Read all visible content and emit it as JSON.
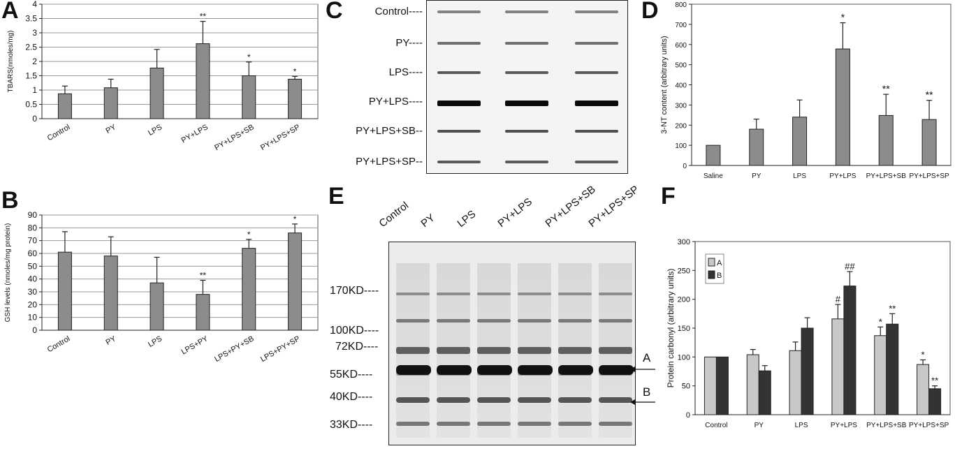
{
  "panels": {
    "a_letter": "A",
    "b_letter": "B",
    "c_letter": "C",
    "d_letter": "D",
    "e_letter": "E",
    "f_letter": "F"
  },
  "chart_data": [
    {
      "id": "A",
      "type": "bar",
      "categories": [
        "Control",
        "PY",
        "LPS",
        "PY+LPS",
        "PY+LPS+SB",
        "PY+LPS+SP"
      ],
      "values": [
        0.87,
        1.08,
        1.77,
        2.62,
        1.5,
        1.38
      ],
      "errors": [
        0.27,
        0.3,
        0.65,
        0.78,
        0.48,
        0.1
      ],
      "annotations": [
        "",
        "",
        "",
        "**",
        "*",
        "*"
      ],
      "ylabel": "TBARS(nmoles/mg)",
      "ylim": [
        0,
        4
      ],
      "yticks": [
        "0",
        "0.5",
        "1",
        "1.5",
        "2",
        "2.5",
        "3",
        "3.5",
        "4"
      ],
      "grid": true,
      "color": "#8c8c8c"
    },
    {
      "id": "B",
      "type": "bar",
      "categories": [
        "Control",
        "PY",
        "LPS",
        "LPS+PY",
        "LPS+PY+SB",
        "LPS+PY+SP"
      ],
      "values": [
        61,
        58,
        37,
        28,
        64,
        76
      ],
      "errors": [
        16,
        15,
        20,
        11,
        7,
        7
      ],
      "annotations": [
        "",
        "",
        "",
        "**",
        "*",
        "*"
      ],
      "ylabel": "GSH levels (nmoles/mg protein)",
      "ylim": [
        0,
        90
      ],
      "yticks": [
        "0",
        "10",
        "20",
        "30",
        "40",
        "50",
        "60",
        "70",
        "80",
        "90"
      ],
      "grid": true,
      "color": "#8c8c8c"
    },
    {
      "id": "D",
      "type": "bar",
      "categories": [
        "Saline",
        "PY",
        "LPS",
        "PY+LPS",
        "PY+LPS+SB",
        "PY+LPS+SP"
      ],
      "values": [
        100,
        180,
        240,
        578,
        248,
        228
      ],
      "errors": [
        0,
        50,
        85,
        130,
        105,
        95
      ],
      "annotations": [
        "",
        "",
        "",
        "*",
        "**",
        "**"
      ],
      "ylabel": "3-NT content (arbitrary units)",
      "ylim": [
        0,
        800
      ],
      "yticks": [
        "0",
        "100",
        "200",
        "300",
        "400",
        "500",
        "600",
        "700",
        "800"
      ],
      "grid": false,
      "color": "#8c8c8c"
    },
    {
      "id": "F",
      "type": "bar",
      "categories": [
        "Control",
        "PY",
        "LPS",
        "PY+LPS",
        "PY+LPS+SB",
        "PY+LPS+SP"
      ],
      "series": [
        {
          "name": "A",
          "values": [
            100,
            104,
            111,
            166,
            137,
            87
          ],
          "errors": [
            0,
            9,
            15,
            25,
            15,
            8
          ],
          "annotations": [
            "",
            "",
            "",
            "#",
            "*",
            "*"
          ],
          "color": "#c8c8c8"
        },
        {
          "name": "B",
          "values": [
            100,
            76,
            150,
            223,
            157,
            45
          ],
          "errors": [
            0,
            9,
            18,
            25,
            18,
            5
          ],
          "annotations": [
            "",
            "",
            "",
            "##",
            "**",
            "**"
          ],
          "color": "#333333"
        }
      ],
      "ylabel": "Protein carbonyl (arbitrary units)",
      "ylim": [
        0,
        300
      ],
      "yticks": [
        "0",
        "50",
        "100",
        "150",
        "200",
        "250",
        "300"
      ],
      "legend": "top-left",
      "grid": false
    }
  ],
  "blot_c": {
    "labels": [
      "Control----",
      "PY----",
      "LPS----",
      "PY+LPS----",
      "PY+LPS+SB--",
      "PY+LPS+SP--"
    ],
    "band_intensity": [
      0.35,
      0.45,
      0.55,
      0.95,
      0.6,
      0.55
    ]
  },
  "blot_e": {
    "lanes": [
      "Control",
      "PY",
      "LPS",
      "PY+LPS",
      "PY+LPS+SB",
      "PY+LPS+SP"
    ],
    "markers": [
      "170KD----",
      "100KD----",
      "72KD----",
      "55KD----",
      "40KD----",
      "33KD----"
    ],
    "arrow_a": "A",
    "arrow_b": "B"
  }
}
